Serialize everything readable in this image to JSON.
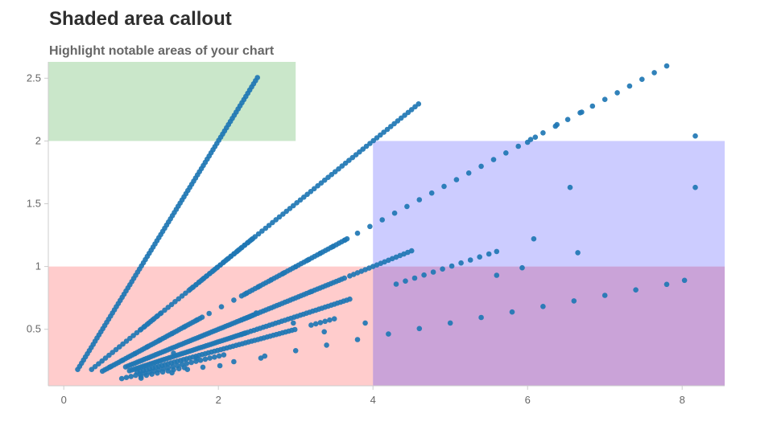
{
  "chart_data": {
    "type": "scatter",
    "title": "Shaded area callout",
    "subtitle": "Highlight notable areas of your chart",
    "xlabel": "",
    "ylabel": "",
    "xlim": [
      -0.2,
      8.55
    ],
    "ylim": [
      0.05,
      2.63
    ],
    "x_ticks": [
      0,
      2,
      4,
      6,
      8
    ],
    "y_ticks": [
      0.5,
      1,
      1.5,
      2,
      2.5
    ],
    "grid": false,
    "point_color": "#1f77b4",
    "shaded_areas": [
      {
        "x": [
          -0.2,
          3
        ],
        "y": [
          2,
          2.63
        ],
        "color": "#2ca02c",
        "opacity": 0.25
      },
      {
        "x": [
          -0.2,
          4
        ],
        "y": [
          0.05,
          1
        ],
        "color": "#ff0000",
        "opacity": 0.2
      },
      {
        "x": [
          4,
          8.55
        ],
        "y": [
          1,
          2
        ],
        "color": "#0000ff",
        "opacity": 0.2
      },
      {
        "x": [
          4,
          8.55
        ],
        "y": [
          0.05,
          1
        ],
        "color": "#7a1a9e",
        "opacity": 0.4
      }
    ],
    "rays": [
      {
        "slope": 1.0,
        "x_start": 0.18,
        "x_end": 2.51,
        "step": 0.025
      },
      {
        "slope": 0.5,
        "x_start": 0.36,
        "x_end": 4.6,
        "step": 0.045
      },
      {
        "slope": 0.333,
        "x_start": 0.6,
        "x_end": 8.15,
        "step": 0.16
      },
      {
        "slope": 0.5,
        "x_start": 1.0,
        "x_end": 1.27,
        "step": 0.05
      },
      {
        "slope": 0.5,
        "x_start": 1.64,
        "x_end": 2.45,
        "step": 0.035
      },
      {
        "slope": 0.333,
        "x_start": 0.5,
        "x_end": 1.8,
        "step": 0.03
      },
      {
        "slope": 0.333,
        "x_start": 2.3,
        "x_end": 3.68,
        "step": 0.035
      },
      {
        "slope": 0.25,
        "x_start": 0.8,
        "x_end": 2.45,
        "step": 0.03
      },
      {
        "slope": 0.25,
        "x_start": 2.3,
        "x_end": 3.65,
        "step": 0.035
      },
      {
        "slope": 0.25,
        "x_start": 3.7,
        "x_end": 4.5,
        "step": 0.05
      },
      {
        "slope": 0.2,
        "x_start": 0.85,
        "x_end": 2.35,
        "step": 0.03
      },
      {
        "slope": 0.2,
        "x_start": 2.3,
        "x_end": 3.7,
        "step": 0.04
      },
      {
        "slope": 0.2,
        "x_start": 4.3,
        "x_end": 5.6,
        "step": 0.12
      },
      {
        "slope": 0.1667,
        "x_start": 0.95,
        "x_end": 3.0,
        "step": 0.04
      },
      {
        "slope": 0.1667,
        "x_start": 3.2,
        "x_end": 3.5,
        "step": 0.06
      },
      {
        "slope": 0.143,
        "x_start": 0.75,
        "x_end": 2.1,
        "step": 0.06
      },
      {
        "slope": 0.125,
        "x_start": 1.0,
        "x_end": 1.6,
        "step": 0.07
      },
      {
        "slope": 0.11,
        "x_start": 1.0,
        "x_end": 8.1,
        "step": 0.4
      }
    ],
    "extra_points": [
      [
        6.0,
        1.99
      ],
      [
        6.1,
        2.03
      ],
      [
        6.38,
        2.13
      ],
      [
        6.7,
        2.23
      ],
      [
        8.17,
        2.04
      ],
      [
        8.17,
        1.63
      ],
      [
        6.55,
        1.63
      ],
      [
        6.08,
        1.22
      ],
      [
        6.65,
        1.11
      ],
      [
        5.6,
        1.12
      ],
      [
        5.93,
        0.99
      ],
      [
        5.6,
        0.93
      ],
      [
        8.03,
        0.89
      ],
      [
        3.9,
        0.55
      ],
      [
        3.37,
        0.48
      ],
      [
        2.55,
        0.27
      ],
      [
        2.02,
        0.21
      ],
      [
        1.72,
        0.27
      ],
      [
        1.6,
        0.18
      ],
      [
        1.42,
        0.31
      ],
      [
        2.97,
        0.55
      ],
      [
        3.2,
        0.8
      ],
      [
        2.49,
        0.63
      ]
    ]
  }
}
